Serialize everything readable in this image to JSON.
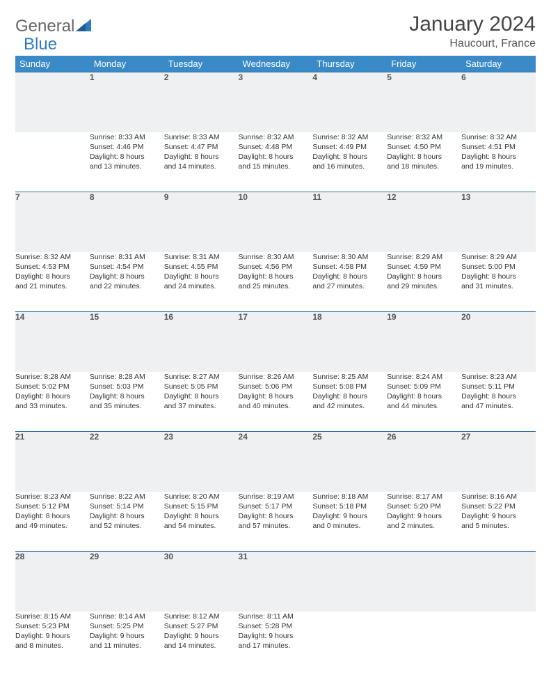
{
  "logo": {
    "part1": "General",
    "part2": "Blue"
  },
  "title": "January 2024",
  "location": "Haucourt, France",
  "colors": {
    "header_bg": "#3a8ac8",
    "header_text": "#ffffff",
    "daynum_bg": "#eef0f1",
    "row_border": "#2f6fa3",
    "body_text": "#333333",
    "title_text": "#444444",
    "logo_gray": "#666666",
    "logo_blue": "#2f7bbf"
  },
  "day_headers": [
    "Sunday",
    "Monday",
    "Tuesday",
    "Wednesday",
    "Thursday",
    "Friday",
    "Saturday"
  ],
  "weeks": [
    {
      "nums": [
        "",
        "1",
        "2",
        "3",
        "4",
        "5",
        "6"
      ],
      "cells": [
        {
          "empty": true
        },
        {
          "sunrise": "Sunrise: 8:33 AM",
          "sunset": "Sunset: 4:46 PM",
          "day1": "Daylight: 8 hours",
          "day2": "and 13 minutes."
        },
        {
          "sunrise": "Sunrise: 8:33 AM",
          "sunset": "Sunset: 4:47 PM",
          "day1": "Daylight: 8 hours",
          "day2": "and 14 minutes."
        },
        {
          "sunrise": "Sunrise: 8:32 AM",
          "sunset": "Sunset: 4:48 PM",
          "day1": "Daylight: 8 hours",
          "day2": "and 15 minutes."
        },
        {
          "sunrise": "Sunrise: 8:32 AM",
          "sunset": "Sunset: 4:49 PM",
          "day1": "Daylight: 8 hours",
          "day2": "and 16 minutes."
        },
        {
          "sunrise": "Sunrise: 8:32 AM",
          "sunset": "Sunset: 4:50 PM",
          "day1": "Daylight: 8 hours",
          "day2": "and 18 minutes."
        },
        {
          "sunrise": "Sunrise: 8:32 AM",
          "sunset": "Sunset: 4:51 PM",
          "day1": "Daylight: 8 hours",
          "day2": "and 19 minutes."
        }
      ]
    },
    {
      "nums": [
        "7",
        "8",
        "9",
        "10",
        "11",
        "12",
        "13"
      ],
      "cells": [
        {
          "sunrise": "Sunrise: 8:32 AM",
          "sunset": "Sunset: 4:53 PM",
          "day1": "Daylight: 8 hours",
          "day2": "and 21 minutes."
        },
        {
          "sunrise": "Sunrise: 8:31 AM",
          "sunset": "Sunset: 4:54 PM",
          "day1": "Daylight: 8 hours",
          "day2": "and 22 minutes."
        },
        {
          "sunrise": "Sunrise: 8:31 AM",
          "sunset": "Sunset: 4:55 PM",
          "day1": "Daylight: 8 hours",
          "day2": "and 24 minutes."
        },
        {
          "sunrise": "Sunrise: 8:30 AM",
          "sunset": "Sunset: 4:56 PM",
          "day1": "Daylight: 8 hours",
          "day2": "and 25 minutes."
        },
        {
          "sunrise": "Sunrise: 8:30 AM",
          "sunset": "Sunset: 4:58 PM",
          "day1": "Daylight: 8 hours",
          "day2": "and 27 minutes."
        },
        {
          "sunrise": "Sunrise: 8:29 AM",
          "sunset": "Sunset: 4:59 PM",
          "day1": "Daylight: 8 hours",
          "day2": "and 29 minutes."
        },
        {
          "sunrise": "Sunrise: 8:29 AM",
          "sunset": "Sunset: 5:00 PM",
          "day1": "Daylight: 8 hours",
          "day2": "and 31 minutes."
        }
      ]
    },
    {
      "nums": [
        "14",
        "15",
        "16",
        "17",
        "18",
        "19",
        "20"
      ],
      "cells": [
        {
          "sunrise": "Sunrise: 8:28 AM",
          "sunset": "Sunset: 5:02 PM",
          "day1": "Daylight: 8 hours",
          "day2": "and 33 minutes."
        },
        {
          "sunrise": "Sunrise: 8:28 AM",
          "sunset": "Sunset: 5:03 PM",
          "day1": "Daylight: 8 hours",
          "day2": "and 35 minutes."
        },
        {
          "sunrise": "Sunrise: 8:27 AM",
          "sunset": "Sunset: 5:05 PM",
          "day1": "Daylight: 8 hours",
          "day2": "and 37 minutes."
        },
        {
          "sunrise": "Sunrise: 8:26 AM",
          "sunset": "Sunset: 5:06 PM",
          "day1": "Daylight: 8 hours",
          "day2": "and 40 minutes."
        },
        {
          "sunrise": "Sunrise: 8:25 AM",
          "sunset": "Sunset: 5:08 PM",
          "day1": "Daylight: 8 hours",
          "day2": "and 42 minutes."
        },
        {
          "sunrise": "Sunrise: 8:24 AM",
          "sunset": "Sunset: 5:09 PM",
          "day1": "Daylight: 8 hours",
          "day2": "and 44 minutes."
        },
        {
          "sunrise": "Sunrise: 8:23 AM",
          "sunset": "Sunset: 5:11 PM",
          "day1": "Daylight: 8 hours",
          "day2": "and 47 minutes."
        }
      ]
    },
    {
      "nums": [
        "21",
        "22",
        "23",
        "24",
        "25",
        "26",
        "27"
      ],
      "cells": [
        {
          "sunrise": "Sunrise: 8:23 AM",
          "sunset": "Sunset: 5:12 PM",
          "day1": "Daylight: 8 hours",
          "day2": "and 49 minutes."
        },
        {
          "sunrise": "Sunrise: 8:22 AM",
          "sunset": "Sunset: 5:14 PM",
          "day1": "Daylight: 8 hours",
          "day2": "and 52 minutes."
        },
        {
          "sunrise": "Sunrise: 8:20 AM",
          "sunset": "Sunset: 5:15 PM",
          "day1": "Daylight: 8 hours",
          "day2": "and 54 minutes."
        },
        {
          "sunrise": "Sunrise: 8:19 AM",
          "sunset": "Sunset: 5:17 PM",
          "day1": "Daylight: 8 hours",
          "day2": "and 57 minutes."
        },
        {
          "sunrise": "Sunrise: 8:18 AM",
          "sunset": "Sunset: 5:18 PM",
          "day1": "Daylight: 9 hours",
          "day2": "and 0 minutes."
        },
        {
          "sunrise": "Sunrise: 8:17 AM",
          "sunset": "Sunset: 5:20 PM",
          "day1": "Daylight: 9 hours",
          "day2": "and 2 minutes."
        },
        {
          "sunrise": "Sunrise: 8:16 AM",
          "sunset": "Sunset: 5:22 PM",
          "day1": "Daylight: 9 hours",
          "day2": "and 5 minutes."
        }
      ]
    },
    {
      "nums": [
        "28",
        "29",
        "30",
        "31",
        "",
        "",
        ""
      ],
      "cells": [
        {
          "sunrise": "Sunrise: 8:15 AM",
          "sunset": "Sunset: 5:23 PM",
          "day1": "Daylight: 9 hours",
          "day2": "and 8 minutes."
        },
        {
          "sunrise": "Sunrise: 8:14 AM",
          "sunset": "Sunset: 5:25 PM",
          "day1": "Daylight: 9 hours",
          "day2": "and 11 minutes."
        },
        {
          "sunrise": "Sunrise: 8:12 AM",
          "sunset": "Sunset: 5:27 PM",
          "day1": "Daylight: 9 hours",
          "day2": "and 14 minutes."
        },
        {
          "sunrise": "Sunrise: 8:11 AM",
          "sunset": "Sunset: 5:28 PM",
          "day1": "Daylight: 9 hours",
          "day2": "and 17 minutes."
        },
        {
          "empty": true
        },
        {
          "empty": true
        },
        {
          "empty": true
        }
      ]
    }
  ]
}
